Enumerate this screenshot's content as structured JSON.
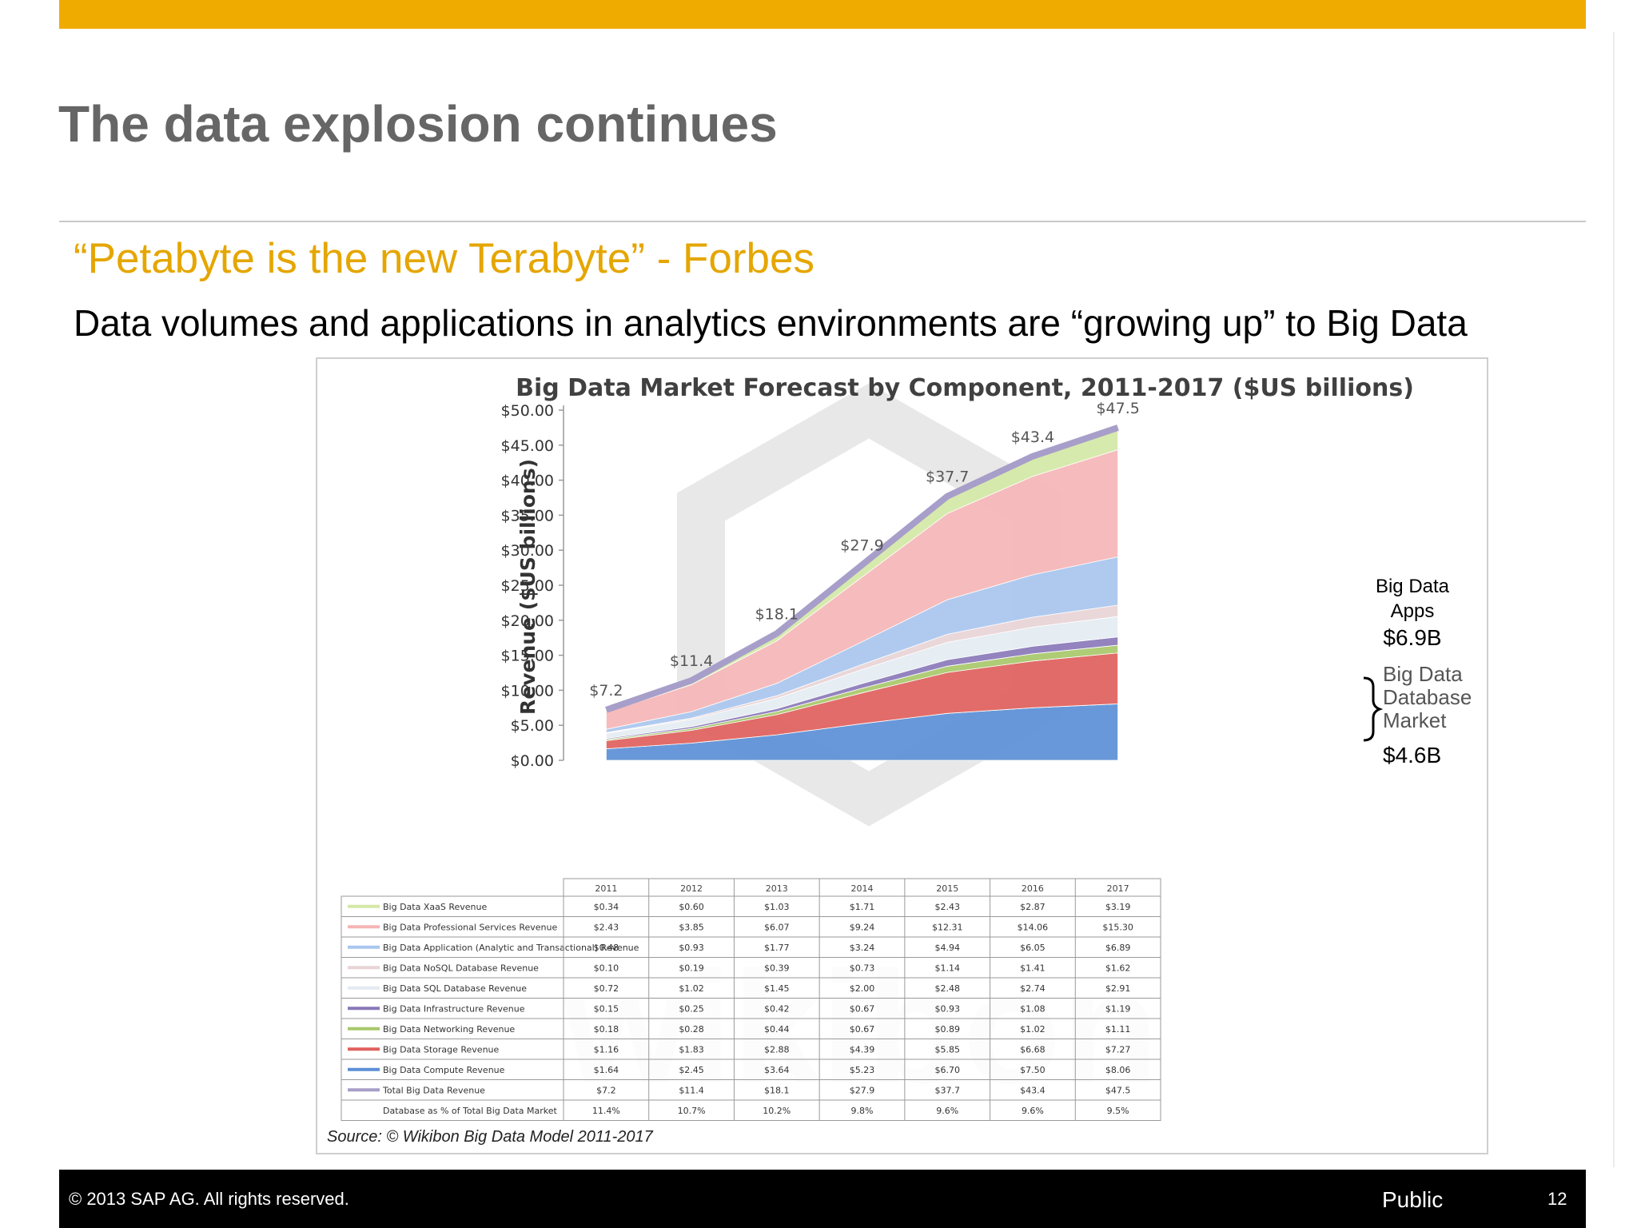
{
  "slide": {
    "title": "The data explosion continues",
    "quote": "“Petabyte is the new Terabyte” - Forbes",
    "body": "Data volumes and applications in analytics environments are “growing up” to Big Data"
  },
  "figure": {
    "source": "Source: © Wikibon Big Data Model 2011-2017",
    "callouts": {
      "apps_label_line1": "Big Data",
      "apps_label_line2": "Apps",
      "apps_value": "$6.9B",
      "db_label_line1": "Big Data",
      "db_label_line2": "Database",
      "db_label_line3": "Market",
      "db_value": "$4.6B"
    },
    "watermark": "wikibon"
  },
  "footer": {
    "copyright": "©  2013 SAP AG. All rights reserved.",
    "classification": "Public",
    "page_number": "12"
  },
  "chart_data": {
    "type": "area",
    "stacked": true,
    "title": "Big Data Market Forecast by Component, 2011-2017 ($US billions)",
    "ylabel": "Revenue ($US billions)",
    "xlabel": "",
    "ylim": [
      0,
      50
    ],
    "yticks": [
      "$0.00",
      "$5.00",
      "$10.00",
      "$15.00",
      "$20.00",
      "$25.00",
      "$30.00",
      "$35.00",
      "$40.00",
      "$45.00",
      "$50.00"
    ],
    "categories": [
      "2011",
      "2012",
      "2013",
      "2014",
      "2015",
      "2016",
      "2017"
    ],
    "series": [
      {
        "name": "Big Data Compute Revenue",
        "color": "#5b8fd6",
        "values": [
          1.64,
          2.45,
          3.64,
          5.23,
          6.7,
          7.5,
          8.06
        ],
        "cells": [
          "$1.64",
          "$2.45",
          "$3.64",
          "$5.23",
          "$6.70",
          "$7.50",
          "$8.06"
        ]
      },
      {
        "name": "Big Data Storage Revenue",
        "color": "#e0605c",
        "values": [
          1.16,
          1.83,
          2.88,
          4.39,
          5.85,
          6.68,
          7.27
        ],
        "cells": [
          "$1.16",
          "$1.83",
          "$2.88",
          "$4.39",
          "$5.85",
          "$6.68",
          "$7.27"
        ]
      },
      {
        "name": "Big Data Networking Revenue",
        "color": "#a8c86a",
        "values": [
          0.18,
          0.28,
          0.44,
          0.67,
          0.89,
          1.02,
          1.11
        ],
        "cells": [
          "$0.18",
          "$0.28",
          "$0.44",
          "$0.67",
          "$0.89",
          "$1.02",
          "$1.11"
        ]
      },
      {
        "name": "Big Data Infrastructure Revenue",
        "color": "#8a78b8",
        "values": [
          0.15,
          0.25,
          0.42,
          0.67,
          0.93,
          1.08,
          1.19
        ],
        "cells": [
          "$0.15",
          "$0.25",
          "$0.42",
          "$0.67",
          "$0.93",
          "$1.08",
          "$1.19"
        ]
      },
      {
        "name": "Big Data SQL Database Revenue",
        "color": "#e4ebf2",
        "values": [
          0.72,
          1.02,
          1.45,
          2.0,
          2.48,
          2.74,
          2.91
        ],
        "cells": [
          "$0.72",
          "$1.02",
          "$1.45",
          "$2.00",
          "$2.48",
          "$2.74",
          "$2.91"
        ]
      },
      {
        "name": "Big Data NoSQL Database Revenue",
        "color": "#e8d4d6",
        "values": [
          0.1,
          0.19,
          0.39,
          0.73,
          1.14,
          1.41,
          1.62
        ],
        "cells": [
          "$0.10",
          "$0.19",
          "$0.39",
          "$0.73",
          "$1.14",
          "$1.41",
          "$1.62"
        ]
      },
      {
        "name": "Big Data Application (Analytic and Transactional) Revenue",
        "color": "#a9c6ee",
        "values": [
          0.48,
          0.93,
          1.77,
          3.24,
          4.94,
          6.05,
          6.89
        ],
        "cells": [
          "$0.48",
          "$0.93",
          "$1.77",
          "$3.24",
          "$4.94",
          "$6.05",
          "$6.89"
        ]
      },
      {
        "name": "Big Data Professional Services Revenue",
        "color": "#f5b5b6",
        "values": [
          2.43,
          3.85,
          6.07,
          9.24,
          12.31,
          14.06,
          15.3
        ],
        "cells": [
          "$2.43",
          "$3.85",
          "$6.07",
          "$9.24",
          "$12.31",
          "$14.06",
          "$15.30"
        ]
      },
      {
        "name": "Big Data XaaS Revenue",
        "color": "#d4e8a6",
        "values": [
          0.34,
          0.6,
          1.03,
          1.71,
          2.43,
          2.87,
          3.19
        ],
        "cells": [
          "$0.34",
          "$0.60",
          "$1.03",
          "$1.71",
          "$2.43",
          "$2.87",
          "$3.19"
        ]
      }
    ],
    "total": {
      "name": "Total Big Data Revenue",
      "color": "#a79fc9",
      "values": [
        7.2,
        11.4,
        18.1,
        27.9,
        37.7,
        43.4,
        47.5
      ],
      "cells": [
        "$7.2",
        "$11.4",
        "$18.1",
        "$27.9",
        "$37.7",
        "$43.4",
        "$47.5"
      ],
      "labels": [
        "$7.2",
        "$11.4",
        "$18.1",
        "$27.9",
        "$37.7",
        "$43.4",
        "$47.5"
      ]
    },
    "db_share": {
      "name": "Database as % of Total Big Data Market",
      "cells": [
        "11.4%",
        "10.7%",
        "10.2%",
        "9.8%",
        "9.6%",
        "9.6%",
        "9.5%"
      ]
    },
    "table_order": [
      8,
      7,
      6,
      5,
      4,
      3,
      2,
      1,
      0
    ],
    "grid": false,
    "legend": "table-below"
  }
}
